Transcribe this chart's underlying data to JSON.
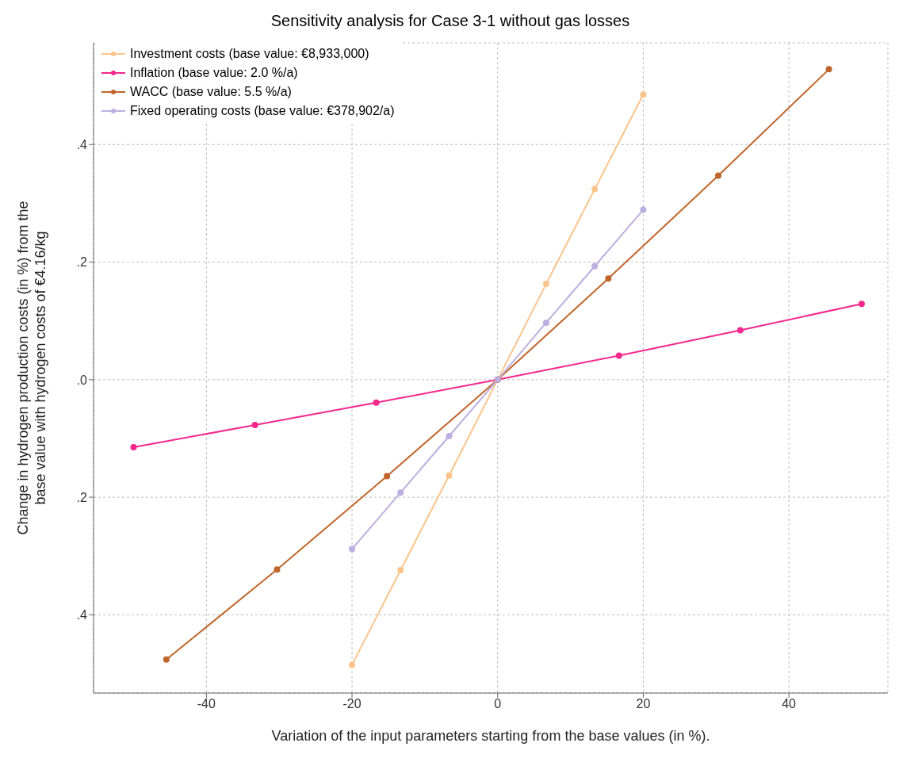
{
  "chart_data": {
    "type": "line",
    "title": "Sensitivity analysis for Case 3-1 without gas losses",
    "xlabel": "Variation of the input parameters starting from the base values (in %).",
    "ylabel": "Change in hydrogen production costs (in %) from the base value with hydrogen costs of €4.16/kg",
    "series": [
      {
        "name": "Investment costs (base value: €8,933,000)",
        "color": "#fbc48c",
        "x": [
          -20,
          -13.33,
          -6.67,
          0,
          6.67,
          13.33,
          20
        ],
        "values": [
          -0.485,
          -0.324,
          -0.163,
          0,
          0.163,
          0.324,
          0.485
        ]
      },
      {
        "name": "Inflation (base value: 2.0 %/a)",
        "color": "#f5288c",
        "x": [
          -50,
          -33.33,
          -16.67,
          0,
          16.67,
          33.33,
          50
        ],
        "values": [
          -0.115,
          -0.077,
          -0.039,
          0,
          0.041,
          0.084,
          0.129
        ]
      },
      {
        "name": "WACC (base value: 5.5 %/a)",
        "color": "#c0652a",
        "x": [
          -45.5,
          -30.3,
          -15.2,
          0,
          15.2,
          30.3,
          45.5
        ],
        "values": [
          -0.476,
          -0.323,
          -0.164,
          0,
          0.172,
          0.347,
          0.528
        ]
      },
      {
        "name": "Fixed operating costs (base value: €378,902/a)",
        "color": "#bcaee0",
        "x": [
          -20,
          -13.33,
          -6.67,
          0,
          6.67,
          13.33,
          20
        ],
        "values": [
          -0.288,
          -0.192,
          -0.096,
          0,
          0.097,
          0.193,
          0.289
        ]
      }
    ],
    "xlim": [
      -55.5,
      53.6
    ],
    "xticks": [
      -40,
      -20,
      0,
      20,
      40
    ],
    "ylim": [
      -0.533,
      0.573
    ],
    "yticks": [
      {
        "value": -0.4,
        "label": ".4"
      },
      {
        "value": -0.2,
        "label": ".2"
      },
      {
        "value": 0,
        "label": ".0"
      },
      {
        "value": 0.2,
        "label": ".2"
      },
      {
        "value": 0.4,
        "label": ".4"
      }
    ],
    "grid": true,
    "legend": "top left",
    "marker": "circle",
    "line_style": "solid"
  }
}
